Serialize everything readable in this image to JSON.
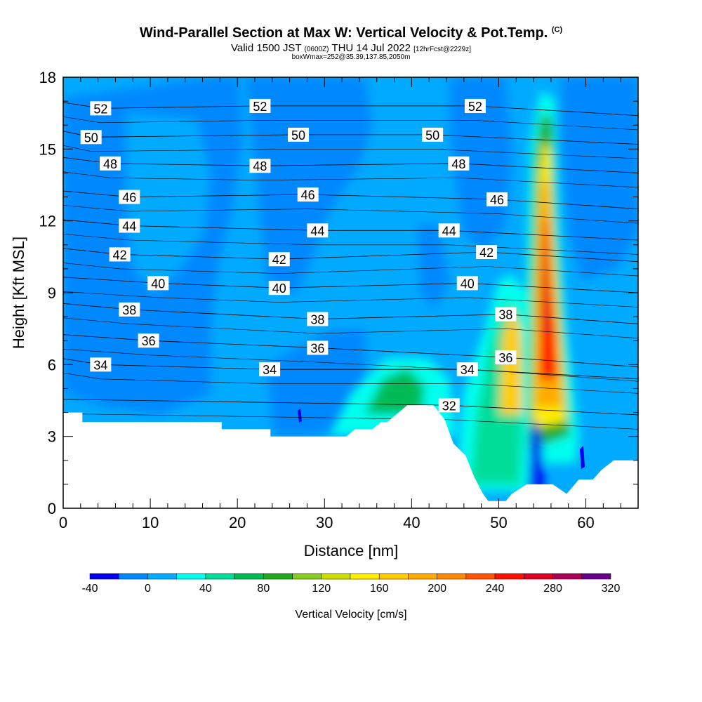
{
  "chart_data": {
    "type": "heatmap",
    "title": "Wind-Parallel Section at Max W: Vertical Velocity & Pot.Temp.",
    "title_mark": "(C)",
    "subtitle_main": "Valid 1500 JST",
    "subtitle_z": "(0600Z)",
    "subtitle_date": "THU 14 Jul 2022",
    "subtitle_fcst": "[12hrFcst@2229z]",
    "subtitle2": "boxWmax=252@35.39,137.85,2050m",
    "xlabel": "Distance [nm]",
    "ylabel": "Height [Kft MSL]",
    "xlim": [
      0,
      66
    ],
    "ylim": [
      0,
      18
    ],
    "x_ticks": [
      "0",
      "10",
      "20",
      "30",
      "40",
      "50",
      "60"
    ],
    "y_ticks": [
      "0",
      "3",
      "6",
      "9",
      "12",
      "15",
      "18"
    ],
    "colorbar": {
      "label": "Vertical Velocity [cm/s]",
      "levels": [
        -40,
        -20,
        0,
        20,
        40,
        60,
        80,
        100,
        120,
        140,
        160,
        180,
        200,
        220,
        240,
        260,
        280,
        300,
        320
      ],
      "tick_labels": [
        "-40",
        "0",
        "40",
        "80",
        "120",
        "160",
        "200",
        "240",
        "280",
        "320"
      ],
      "colors": [
        "#0000ee",
        "#0088ff",
        "#00aaff",
        "#00ffee",
        "#00dd99",
        "#00bb55",
        "#22aa22",
        "#88cc22",
        "#ccdd00",
        "#ffee00",
        "#ffcc00",
        "#ffaa00",
        "#ff8800",
        "#ff5500",
        "#ff1100",
        "#dd0022",
        "#aa0055",
        "#660088"
      ]
    },
    "terrain_kft": [
      {
        "x": 0,
        "h": 4.0
      },
      {
        "x": 2.2,
        "h": 4.0
      },
      {
        "x": 2.2,
        "h": 3.6
      },
      {
        "x": 18.2,
        "h": 3.6
      },
      {
        "x": 18.2,
        "h": 3.3
      },
      {
        "x": 23.8,
        "h": 3.3
      },
      {
        "x": 23.8,
        "h": 3.0
      },
      {
        "x": 31.2,
        "h": 3.0
      },
      {
        "x": 32.5,
        "h": 3.0
      },
      {
        "x": 33.5,
        "h": 3.3
      },
      {
        "x": 35.5,
        "h": 3.3
      },
      {
        "x": 36.5,
        "h": 3.6
      },
      {
        "x": 37.2,
        "h": 3.6
      },
      {
        "x": 39.5,
        "h": 4.3
      },
      {
        "x": 42.5,
        "h": 4.3
      },
      {
        "x": 43.8,
        "h": 3.7
      },
      {
        "x": 44.8,
        "h": 2.7
      },
      {
        "x": 46.2,
        "h": 2.2
      },
      {
        "x": 47.2,
        "h": 1.3
      },
      {
        "x": 48.2,
        "h": 0.6
      },
      {
        "x": 48.8,
        "h": 0.3
      },
      {
        "x": 50.8,
        "h": 0.3
      },
      {
        "x": 51.5,
        "h": 0.6
      },
      {
        "x": 53.2,
        "h": 1.0
      },
      {
        "x": 56.2,
        "h": 1.0
      },
      {
        "x": 57.8,
        "h": 0.6
      },
      {
        "x": 59.2,
        "h": 1.2
      },
      {
        "x": 60.8,
        "h": 1.2
      },
      {
        "x": 61.8,
        "h": 1.6
      },
      {
        "x": 63.2,
        "h": 2.0
      },
      {
        "x": 66,
        "h": 2.0
      }
    ],
    "theta_contour_labels": [
      {
        "value": "52",
        "x": 4.3,
        "y": 16.7
      },
      {
        "value": "52",
        "x": 22.6,
        "y": 16.8
      },
      {
        "value": "52",
        "x": 47.3,
        "y": 16.8
      },
      {
        "value": "50",
        "x": 3.2,
        "y": 15.5
      },
      {
        "value": "50",
        "x": 27.0,
        "y": 15.6
      },
      {
        "value": "50",
        "x": 42.4,
        "y": 15.6
      },
      {
        "value": "48",
        "x": 5.4,
        "y": 14.4
      },
      {
        "value": "48",
        "x": 22.6,
        "y": 14.3
      },
      {
        "value": "48",
        "x": 45.4,
        "y": 14.4
      },
      {
        "value": "46",
        "x": 7.6,
        "y": 13.0
      },
      {
        "value": "46",
        "x": 28.1,
        "y": 13.1
      },
      {
        "value": "46",
        "x": 49.8,
        "y": 12.9
      },
      {
        "value": "44",
        "x": 7.6,
        "y": 11.8
      },
      {
        "value": "44",
        "x": 29.2,
        "y": 11.6
      },
      {
        "value": "44",
        "x": 44.3,
        "y": 11.6
      },
      {
        "value": "42",
        "x": 6.5,
        "y": 10.6
      },
      {
        "value": "42",
        "x": 24.8,
        "y": 10.4
      },
      {
        "value": "42",
        "x": 48.6,
        "y": 10.7
      },
      {
        "value": "40",
        "x": 10.9,
        "y": 9.4
      },
      {
        "value": "40",
        "x": 24.8,
        "y": 9.2
      },
      {
        "value": "40",
        "x": 46.4,
        "y": 9.4
      },
      {
        "value": "38",
        "x": 7.6,
        "y": 8.3
      },
      {
        "value": "38",
        "x": 29.2,
        "y": 7.9
      },
      {
        "value": "38",
        "x": 50.8,
        "y": 8.1
      },
      {
        "value": "36",
        "x": 9.8,
        "y": 7.0
      },
      {
        "value": "36",
        "x": 29.2,
        "y": 6.7
      },
      {
        "value": "36",
        "x": 50.8,
        "y": 6.3
      },
      {
        "value": "34",
        "x": 4.3,
        "y": 6.0
      },
      {
        "value": "34",
        "x": 23.7,
        "y": 5.8
      },
      {
        "value": "34",
        "x": 46.4,
        "y": 5.8
      },
      {
        "value": "32",
        "x": 44.3,
        "y": 4.3
      }
    ],
    "max_w_cm_s": 252,
    "max_w_location": "35.39,137.85",
    "max_w_height_m": 2050,
    "grid": false
  }
}
